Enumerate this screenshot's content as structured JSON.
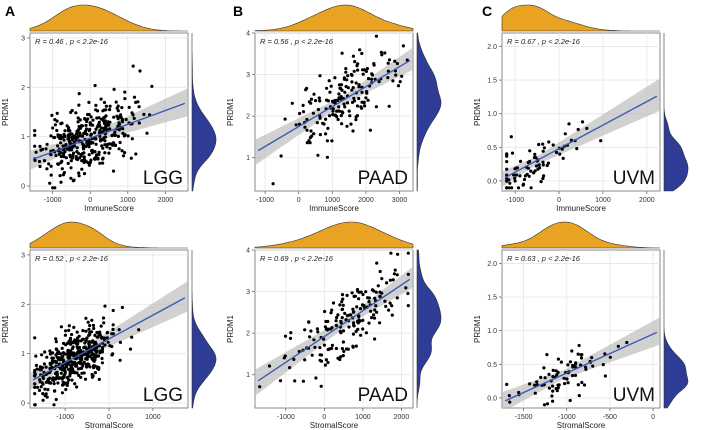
{
  "figure": {
    "style": {
      "point_color": "#000000",
      "fit_line_color": "#3b5bb5",
      "ci_band_color": "#b8b8b8",
      "top_density_fill": "#e7a321",
      "right_density_fill": "#2e3c96",
      "panel_bg": "#ffffff",
      "grid_color": "#e6e6e6",
      "border_color": "#6f6f6f"
    }
  },
  "chart_data": [
    {
      "type": "scatter",
      "panel": "A-top",
      "panel_label": "A",
      "cohort": "LGG",
      "annotation": "R = 0.46 , p < 2.2e-16",
      "xlabel": "ImmuneScore",
      "ylabel": "PRDM1",
      "xlim": [
        -1600,
        2600
      ],
      "ylim": [
        -0.1,
        3.1
      ],
      "xticks": [
        -1000,
        0,
        1000,
        2000
      ],
      "yticks": [
        0,
        1,
        2,
        3
      ],
      "regression": {
        "slope": 0.00028,
        "intercept": 0.97
      },
      "top_density_peak": 300,
      "right_density_peak": 0.9,
      "points": {
        "n": 380,
        "x_mean": -100,
        "x_sd": 600,
        "y_sd_resid": 0.33,
        "seed": 11
      }
    },
    {
      "type": "scatter",
      "panel": "B-top",
      "panel_label": "B",
      "cohort": "PAAD",
      "annotation": "R = 0.56 , p < 2.2e-16",
      "xlabel": "ImmuneScore",
      "ylabel": "PRDM1",
      "xlim": [
        -1300,
        3400
      ],
      "ylim": [
        0.2,
        4.0
      ],
      "xticks": [
        -1000,
        0,
        1000,
        2000,
        3000
      ],
      "yticks": [
        1,
        2,
        3,
        4
      ],
      "regression": {
        "slope": 0.00048,
        "intercept": 1.75
      },
      "top_density_peak": 1300,
      "right_density_peak": 2.3,
      "points": {
        "n": 180,
        "x_mean": 1300,
        "x_sd": 800,
        "y_sd_resid": 0.45,
        "seed": 23
      }
    },
    {
      "type": "scatter",
      "panel": "C-top",
      "panel_label": "C",
      "cohort": "UVM",
      "annotation": "R = 0.67 , p < 2.2e-16",
      "xlabel": "ImmuneScore",
      "ylabel": "PRDM1",
      "xlim": [
        -1300,
        2300
      ],
      "ylim": [
        -0.15,
        2.2
      ],
      "xticks": [
        -1000,
        0,
        1000,
        2000
      ],
      "yticks": [
        0.0,
        0.5,
        1.0,
        1.5,
        2.0
      ],
      "regression": {
        "slope": 0.00035,
        "intercept": 0.48
      },
      "top_density_peak": -600,
      "right_density_peak": 0.15,
      "points": {
        "n": 80,
        "x_mean": -500,
        "x_sd": 500,
        "y_sd_resid": 0.18,
        "seed": 37
      }
    },
    {
      "type": "scatter",
      "panel": "A-bottom",
      "panel_label": "",
      "cohort": "LGG",
      "annotation": "R = 0.52 , p < 2.2e-16",
      "xlabel": "StromalScore",
      "ylabel": "PRDM1",
      "xlim": [
        -1800,
        1800
      ],
      "ylim": [
        -0.1,
        3.1
      ],
      "xticks": [
        -1000,
        0,
        1000
      ],
      "yticks": [
        0,
        1,
        2,
        3
      ],
      "regression": {
        "slope": 0.00048,
        "intercept": 1.3
      },
      "top_density_peak": -900,
      "right_density_peak": 0.8,
      "points": {
        "n": 420,
        "x_mean": -800,
        "x_sd": 450,
        "y_sd_resid": 0.3,
        "seed": 41
      }
    },
    {
      "type": "scatter",
      "panel": "B-bottom",
      "panel_label": "",
      "cohort": "PAAD",
      "annotation": "R = 0.69 , p < 2.2e-16",
      "xlabel": "StromalScore",
      "ylabel": "PRDM1",
      "xlim": [
        -1800,
        2300
      ],
      "ylim": [
        0.2,
        4.0
      ],
      "xticks": [
        -1000,
        0,
        1000,
        2000
      ],
      "yticks": [
        1,
        2,
        3,
        4
      ],
      "regression": {
        "slope": 0.00062,
        "intercept": 1.92
      },
      "top_density_peak": 800,
      "right_density_peak": 2.3,
      "points": {
        "n": 180,
        "x_mean": 600,
        "x_sd": 750,
        "y_sd_resid": 0.4,
        "seed": 53
      }
    },
    {
      "type": "scatter",
      "panel": "C-bottom",
      "panel_label": "",
      "cohort": "UVM",
      "annotation": "R = 0.63 , p < 2.2e-16",
      "xlabel": "StromalScore",
      "ylabel": "PRDM1",
      "xlim": [
        -1750,
        80
      ],
      "ylim": [
        -0.15,
        2.2
      ],
      "xticks": [
        -1500,
        -1000,
        -500,
        0
      ],
      "yticks": [
        0.0,
        0.5,
        1.0,
        1.5,
        2.0
      ],
      "regression": {
        "slope": 0.00058,
        "intercept": 0.95
      },
      "top_density_peak": -1050,
      "right_density_peak": 0.15,
      "points": {
        "n": 80,
        "x_mean": -1050,
        "x_sd": 280,
        "y_sd_resid": 0.16,
        "seed": 67
      }
    }
  ]
}
